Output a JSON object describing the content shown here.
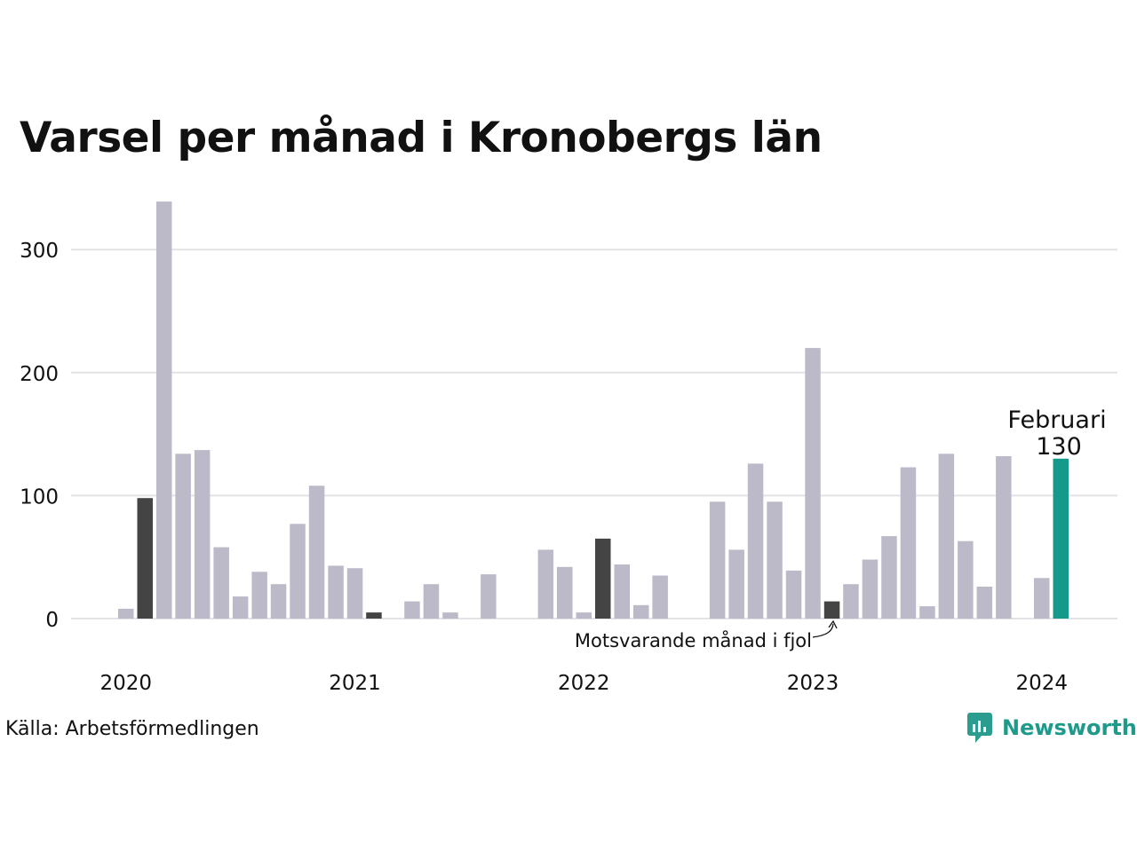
{
  "title": "Varsel per månad i Kronobergs län",
  "source": "Källa: Arbetsförmedlingen",
  "logo_text": "Newsworthy",
  "colors": {
    "bar": "#bcbac8",
    "highlight": "#444444",
    "current": "#15998a",
    "grid": "#e3e3e6"
  },
  "chart_data": {
    "type": "bar",
    "title": "Varsel per månad i Kronobergs län",
    "xlabel": "",
    "ylabel": "",
    "ylim": [
      0,
      340
    ],
    "yticks": [
      0,
      100,
      200,
      300
    ],
    "x_ticks": [
      "2020",
      "2021",
      "2022",
      "2023",
      "2024"
    ],
    "grid": true,
    "series": [
      {
        "values": [
          8,
          98,
          339,
          134,
          137,
          58,
          18,
          38,
          28,
          77,
          108,
          43,
          41,
          5,
          0,
          14,
          28,
          5,
          0,
          36,
          0,
          0,
          56,
          42,
          5,
          65,
          44,
          11,
          35,
          0,
          0,
          95,
          56,
          126,
          95,
          39,
          220,
          14,
          28,
          48,
          67,
          123,
          10,
          134,
          63,
          26,
          132,
          0,
          33,
          130
        ],
        "highlight_indices": [
          1,
          13,
          25,
          37
        ],
        "current_index": 49
      }
    ],
    "annotations": {
      "current_month": "Februari",
      "current_value": "130",
      "previous_year": "Motsvarande månad i fjol"
    }
  }
}
